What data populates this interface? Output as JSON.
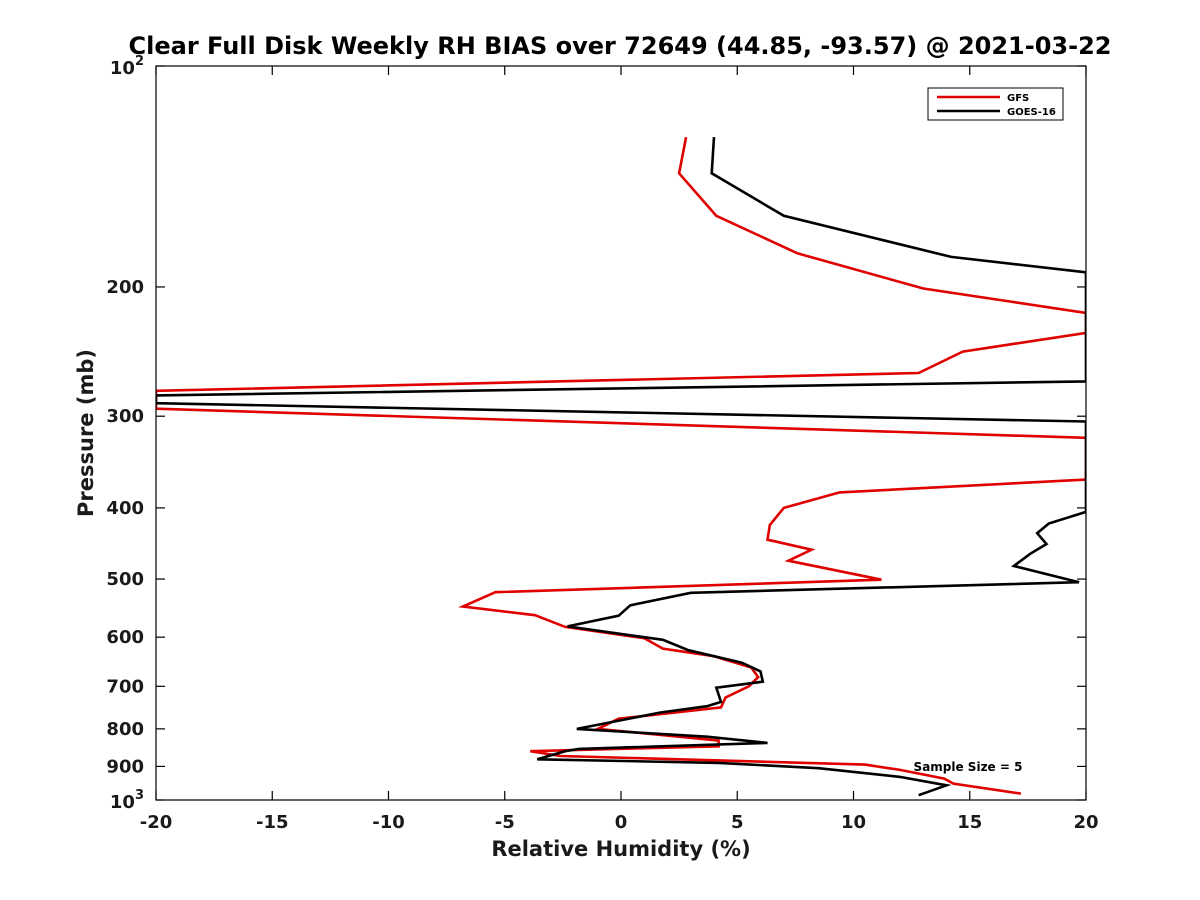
{
  "chart_data": {
    "type": "line",
    "title": "Clear Full Disk Weekly RH BIAS over 72649 (44.85, -93.57) @ 2021-03-22",
    "xlabel": "Relative Humidity (%)",
    "ylabel": "Pressure (mb)",
    "xlim": [
      -20,
      20
    ],
    "ylim": [
      100,
      1000
    ],
    "y_scale": "log",
    "y_reversed": true,
    "x_ticks": [
      -20,
      -15,
      -10,
      -5,
      0,
      5,
      10,
      15,
      20
    ],
    "x_tick_labels": [
      "-20",
      "-15",
      "-10",
      "-5",
      "0",
      "5",
      "10",
      "15",
      "20"
    ],
    "y_ticks": [
      200,
      300,
      400,
      500,
      600,
      700,
      800,
      900
    ],
    "y_tick_labels": [
      "200",
      "300",
      "400",
      "500",
      "600",
      "700",
      "800",
      "900"
    ],
    "y_end_ticks": [
      {
        "value": 100,
        "base": "10",
        "exp": "2"
      },
      {
        "value": 1000,
        "base": "10",
        "exp": "3"
      }
    ],
    "grid": false,
    "legend_position": "top-right",
    "annotation": "Sample Size = 5",
    "series": [
      {
        "name": "GFS",
        "color": "#e00000",
        "points": [
          [
            2.8,
            125
          ],
          [
            2.5,
            140
          ],
          [
            4.1,
            160
          ],
          [
            7.6,
            180
          ],
          [
            13.0,
            201
          ],
          [
            20.0,
            217
          ],
          [
            20.0,
            231
          ],
          [
            14.7,
            245
          ],
          [
            12.8,
            262
          ],
          [
            -20.0,
            277
          ],
          [
            -20.0,
            293
          ],
          [
            20.0,
            321
          ],
          [
            20.0,
            366
          ],
          [
            9.4,
            381
          ],
          [
            7.0,
            400
          ],
          [
            6.4,
            422
          ],
          [
            6.3,
            442
          ],
          [
            8.2,
            456
          ],
          [
            7.2,
            472
          ],
          [
            11.2,
            501
          ],
          [
            -5.4,
            521
          ],
          [
            -6.8,
            545
          ],
          [
            -3.7,
            560
          ],
          [
            -2.4,
            581
          ],
          [
            1.0,
            602
          ],
          [
            1.8,
            622
          ],
          [
            4.0,
            637
          ],
          [
            5.6,
            660
          ],
          [
            5.9,
            680
          ],
          [
            5.5,
            700
          ],
          [
            4.5,
            725
          ],
          [
            4.3,
            748
          ],
          [
            -0.1,
            775
          ],
          [
            -1.0,
            800
          ],
          [
            4.2,
            830
          ],
          [
            4.2,
            845
          ],
          [
            -3.9,
            858
          ],
          [
            -2.6,
            871
          ],
          [
            10.5,
            895
          ],
          [
            12.0,
            910
          ],
          [
            13.9,
            935
          ],
          [
            14.3,
            950
          ],
          [
            17.2,
            980
          ]
        ]
      },
      {
        "name": "GOES-16",
        "color": "#000000",
        "points": [
          [
            4.0,
            125
          ],
          [
            3.9,
            140
          ],
          [
            7.0,
            160
          ],
          [
            14.2,
            182
          ],
          [
            20.0,
            191
          ],
          [
            20.0,
            256
          ],
          [
            20.0,
            269
          ],
          [
            -20.0,
            281
          ],
          [
            -20.0,
            288
          ],
          [
            20.0,
            305
          ],
          [
            20.0,
            405
          ],
          [
            18.4,
            420
          ],
          [
            17.9,
            433
          ],
          [
            18.3,
            448
          ],
          [
            17.6,
            462
          ],
          [
            16.9,
            480
          ],
          [
            19.7,
            505
          ],
          [
            3.0,
            522
          ],
          [
            0.4,
            543
          ],
          [
            -0.1,
            561
          ],
          [
            -2.3,
            580
          ],
          [
            1.8,
            605
          ],
          [
            2.9,
            625
          ],
          [
            5.2,
            650
          ],
          [
            6.0,
            668
          ],
          [
            6.1,
            690
          ],
          [
            4.1,
            703
          ],
          [
            4.3,
            735
          ],
          [
            3.7,
            745
          ],
          [
            1.7,
            760
          ],
          [
            -1.9,
            800
          ],
          [
            3.7,
            820
          ],
          [
            6.3,
            836
          ],
          [
            -1.8,
            852
          ],
          [
            -2.4,
            858
          ],
          [
            -3.6,
            880
          ],
          [
            4.2,
            890
          ],
          [
            8.5,
            905
          ],
          [
            12.0,
            930
          ],
          [
            14.0,
            955
          ],
          [
            12.8,
            985
          ]
        ]
      }
    ]
  }
}
